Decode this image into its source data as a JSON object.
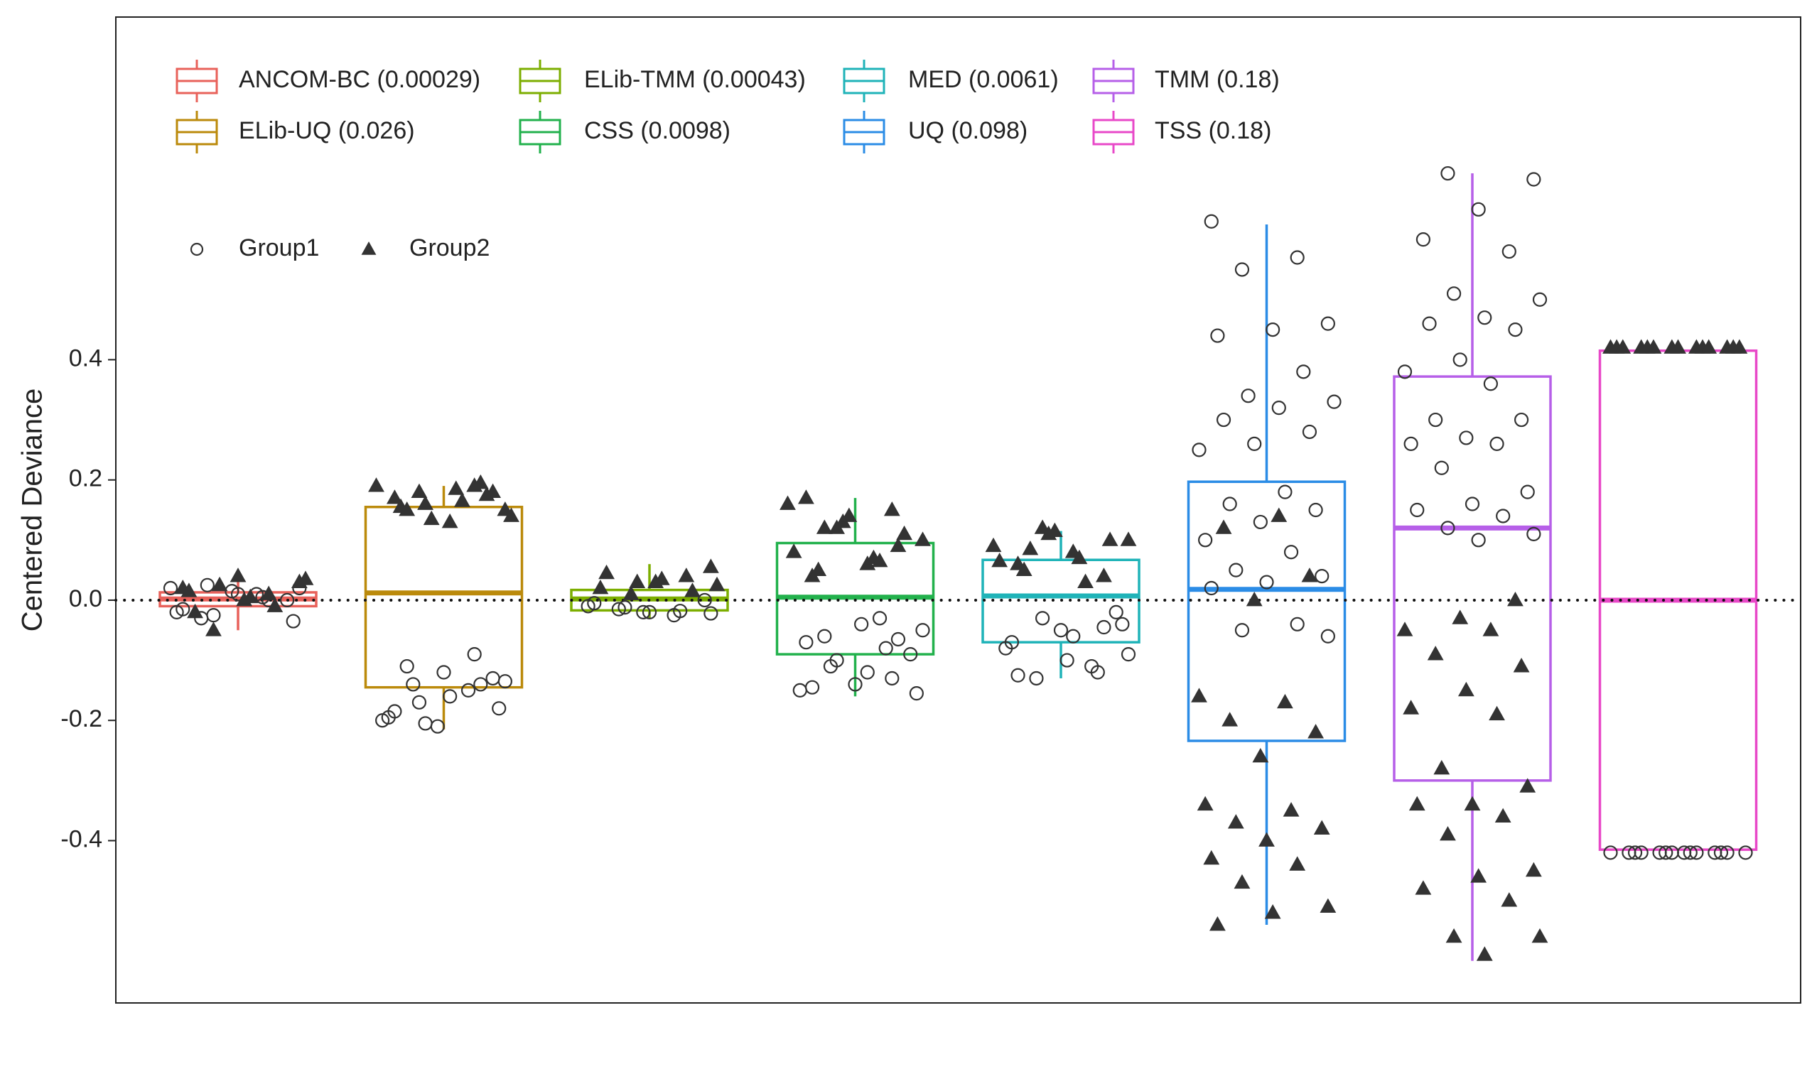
{
  "chart_data": {
    "type": "box",
    "y_label": "Centered Deviance",
    "ylim": [
      -0.67,
      0.97
    ],
    "yticks": [
      -0.4,
      -0.2,
      {
        "value": 0,
        "label": "0.0"
      },
      0.2,
      0.4
    ],
    "reference_line": 0,
    "point_groups": [
      {
        "name": "Group1",
        "marker": "circle"
      },
      {
        "name": "Group2",
        "marker": "triangle"
      }
    ],
    "boxes": [
      {
        "name": "ANCOM-BC (0.00029)",
        "color": "#e8615a",
        "stats": [
          -0.05,
          -0.01,
          0.002,
          0.013,
          0.04
        ],
        "points": [
          [
            0.02,
            0.01,
            -0.03,
            0.0,
            0.015,
            -0.02,
            0.005,
            0.025,
            -0.035,
            0.01,
            -0.015,
            0.0,
            -0.025,
            0.02
          ],
          [
            0.04,
            0.02,
            0.01,
            -0.05,
            0.03,
            0.0,
            0.015,
            -0.01,
            0.025,
            0.035,
            0.005,
            -0.02
          ]
        ]
      },
      {
        "name": "ELib-UQ (0.026)",
        "color": "#bb8a0b",
        "stats": [
          -0.215,
          -0.145,
          0.012,
          0.155,
          0.19
        ],
        "points": [
          [
            -0.11,
            -0.13,
            -0.21,
            -0.2,
            -0.15,
            -0.14,
            -0.18,
            -0.12,
            -0.195,
            -0.09,
            -0.17,
            -0.135,
            -0.16,
            -0.185,
            -0.14,
            -0.205
          ],
          [
            0.19,
            0.18,
            0.15,
            0.13,
            0.17,
            0.195,
            0.16,
            0.14,
            0.185,
            0.155,
            0.175,
            0.135,
            0.19,
            0.165,
            0.15,
            0.18
          ]
        ]
      },
      {
        "name": "ELib-TMM (0.00043)",
        "color": "#7cae00",
        "stats": [
          -0.03,
          -0.017,
          0.002,
          0.017,
          0.06
        ],
        "points": [
          [
            -0.02,
            -0.01,
            -0.025,
            -0.015,
            0.0,
            -0.02,
            -0.005,
            -0.018,
            -0.012,
            -0.022
          ],
          [
            0.055,
            0.03,
            0.02,
            0.04,
            0.01,
            0.025,
            0.035,
            0.045,
            0.015,
            0.03
          ]
        ]
      },
      {
        "name": "CSS (0.0098)",
        "color": "#22b14c",
        "stats": [
          -0.16,
          -0.09,
          0.005,
          0.095,
          0.17
        ],
        "points": [
          [
            -0.03,
            -0.06,
            -0.09,
            -0.14,
            -0.15,
            -0.08,
            -0.11,
            -0.155,
            -0.04,
            -0.07,
            -0.13,
            -0.1,
            -0.05,
            -0.12,
            -0.145,
            -0.065
          ],
          [
            0.17,
            0.15,
            0.12,
            0.1,
            0.06,
            0.04,
            0.09,
            0.13,
            0.16,
            0.07,
            0.05,
            0.11,
            0.14,
            0.08,
            0.065,
            0.12
          ]
        ]
      },
      {
        "name": "MED (0.0061)",
        "color": "#1fb3b8",
        "stats": [
          -0.13,
          -0.07,
          0.007,
          0.067,
          0.115
        ],
        "points": [
          [
            -0.02,
            -0.05,
            -0.08,
            -0.11,
            -0.13,
            -0.04,
            -0.1,
            -0.07,
            -0.12,
            -0.03,
            -0.09,
            -0.06,
            -0.125,
            -0.045
          ],
          [
            0.12,
            0.1,
            0.08,
            0.06,
            0.04,
            0.11,
            0.09,
            0.07,
            0.05,
            0.1,
            0.115,
            0.065,
            0.03,
            0.085
          ]
        ]
      },
      {
        "name": "UQ (0.098)",
        "color": "#2b8ce6",
        "stats": [
          -0.54,
          -0.234,
          0.018,
          0.197,
          0.625
        ],
        "points": [
          [
            0.63,
            0.57,
            0.55,
            0.46,
            0.45,
            0.44,
            0.38,
            0.34,
            0.33,
            0.32,
            0.3,
            0.28,
            0.26,
            0.25,
            0.18,
            0.16,
            0.15,
            0.13,
            0.1,
            0.08,
            0.05,
            0.04,
            0.03,
            0.02,
            -0.04,
            -0.05,
            -0.06
          ],
          [
            0.14,
            0.12,
            0.04,
            0.0,
            -0.16,
            -0.17,
            -0.2,
            -0.22,
            -0.26,
            -0.34,
            -0.35,
            -0.37,
            -0.38,
            -0.4,
            -0.43,
            -0.44,
            -0.47,
            -0.51,
            -0.52,
            -0.54
          ]
        ]
      },
      {
        "name": "TMM (0.18)",
        "color": "#b65fe8",
        "stats": [
          -0.6,
          -0.3,
          0.12,
          0.372,
          0.71
        ],
        "points": [
          [
            0.71,
            0.7,
            0.65,
            0.6,
            0.58,
            0.51,
            0.5,
            0.47,
            0.46,
            0.45,
            0.4,
            0.38,
            0.36,
            0.3,
            0.3,
            0.27,
            0.26,
            0.26,
            0.22,
            0.18,
            0.16,
            0.15,
            0.14,
            0.12,
            0.11,
            0.1
          ],
          [
            0.0,
            -0.03,
            -0.05,
            -0.05,
            -0.09,
            -0.11,
            -0.15,
            -0.18,
            -0.19,
            -0.28,
            -0.31,
            -0.34,
            -0.34,
            -0.36,
            -0.39,
            -0.45,
            -0.46,
            -0.48,
            -0.5,
            -0.56,
            -0.56,
            -0.59
          ]
        ]
      },
      {
        "name": "TSS (0.18)",
        "color": "#e848c8",
        "stats": [
          -0.415,
          -0.415,
          0,
          0.415,
          0.415
        ],
        "points": [
          [
            -0.42,
            -0.42,
            -0.42,
            -0.42,
            -0.42,
            -0.42,
            -0.42,
            -0.42,
            -0.42,
            -0.42,
            -0.42,
            -0.42,
            -0.42,
            -0.42
          ],
          [
            0.42,
            0.42,
            0.42,
            0.42,
            0.42,
            0.42,
            0.42,
            0.42,
            0.42,
            0.42,
            0.42,
            0.42,
            0.42,
            0.42
          ]
        ]
      }
    ]
  }
}
